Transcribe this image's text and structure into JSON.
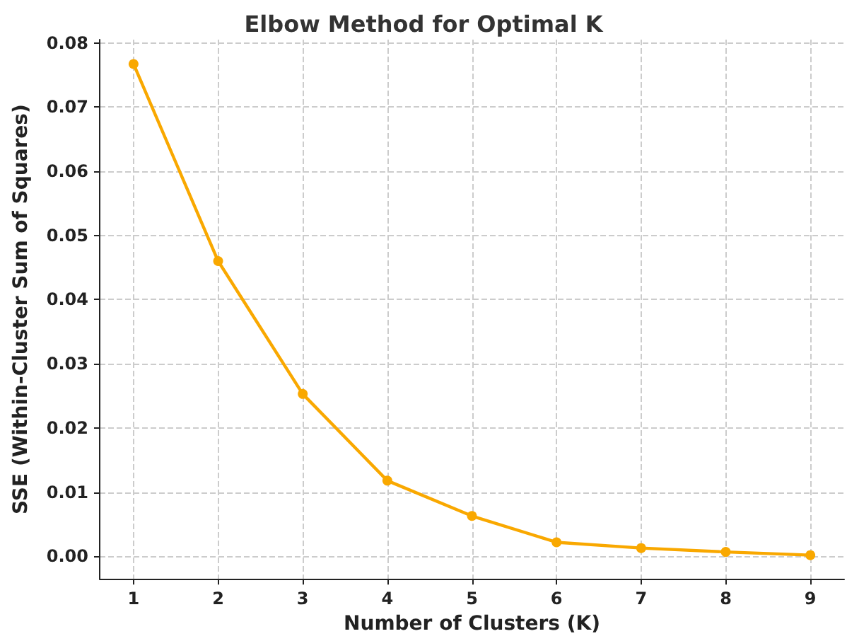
{
  "chart_data": {
    "type": "line",
    "title": "Elbow Method for Optimal K",
    "xlabel": "Number of Clusters (K)",
    "ylabel": "SSE (Within-Cluster Sum of Squares)",
    "x": [
      1,
      2,
      3,
      4,
      5,
      6,
      7,
      8,
      9
    ],
    "series": [
      {
        "color": "#f9a800",
        "values": [
          0.0767,
          0.046,
          0.0253,
          0.0118,
          0.0063,
          0.0022,
          0.0013,
          0.0007,
          0.0002
        ]
      }
    ],
    "xlim": [
      0.6,
      9.4
    ],
    "xticks": [
      1,
      2,
      3,
      4,
      5,
      6,
      7,
      8,
      9
    ],
    "ylim": [
      -0.0035,
      0.0805
    ],
    "yticks": [
      {
        "value": 0,
        "label": "0.00"
      },
      {
        "value": 0.01,
        "label": "0.01"
      },
      {
        "value": 0.02,
        "label": "0.02"
      },
      {
        "value": 0.03,
        "label": "0.03"
      },
      {
        "value": 0.04,
        "label": "0.04"
      },
      {
        "value": 0.05,
        "label": "0.05"
      },
      {
        "value": 0.06,
        "label": "0.06"
      },
      {
        "value": 0.07,
        "label": "0.07"
      },
      {
        "value": 0.08,
        "label": "0.08"
      }
    ],
    "grid": true,
    "marker": "circle",
    "line_style": "solid"
  }
}
